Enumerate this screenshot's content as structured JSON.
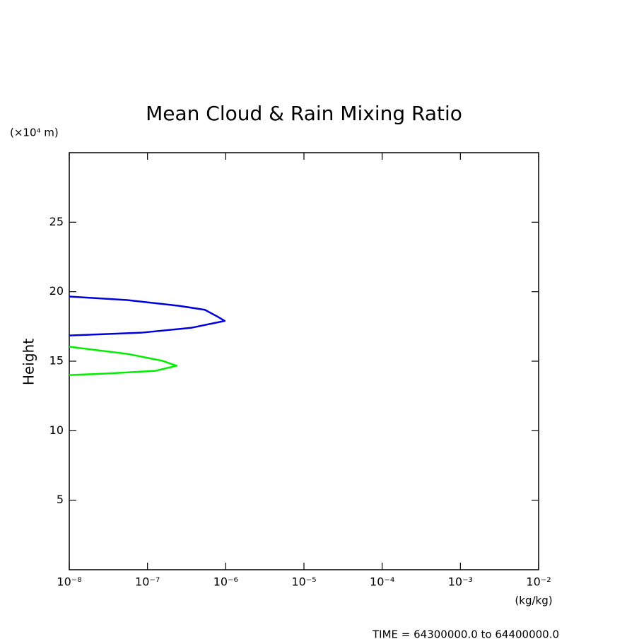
{
  "chart_data": {
    "type": "line",
    "title": "Mean Cloud & Rain Mixing Ratio",
    "y_unit_label": "(×10⁴ m)",
    "ylabel": "Height",
    "xlabel": "(kg/kg)",
    "footer": "TIME = 64300000.0 to 64400000.0",
    "xscale": "log",
    "xlim": [
      1e-08,
      0.01
    ],
    "xticks": [
      {
        "value": 1e-08,
        "label": "10⁻⁸"
      },
      {
        "value": 1e-07,
        "label": "10⁻⁷"
      },
      {
        "value": 1e-06,
        "label": "10⁻⁶"
      },
      {
        "value": 1e-05,
        "label": "10⁻⁵"
      },
      {
        "value": 0.0001,
        "label": "10⁻⁴"
      },
      {
        "value": 0.001,
        "label": "10⁻³"
      },
      {
        "value": 0.01,
        "label": "10⁻²"
      }
    ],
    "ylim": [
      0,
      30
    ],
    "yticks": [
      5,
      10,
      15,
      20,
      25
    ],
    "series": [
      {
        "color": "#0000dd",
        "x": [
          1e-08,
          5.5e-08,
          2.4e-07,
          5.4e-07,
          7.9e-07,
          9.7e-07,
          3.6e-07,
          8.3e-08,
          1e-08
        ],
        "y": [
          19.65,
          19.4,
          19.0,
          18.7,
          18.2,
          17.9,
          17.4,
          17.05,
          16.85
        ]
      },
      {
        "color": "#00ee00",
        "x": [
          1e-08,
          5.5e-08,
          1.55e-07,
          2.35e-07,
          1.26e-07,
          2.95e-08,
          1e-08
        ],
        "y": [
          16.04,
          15.53,
          15.03,
          14.67,
          14.31,
          14.11,
          14.0
        ]
      }
    ]
  }
}
